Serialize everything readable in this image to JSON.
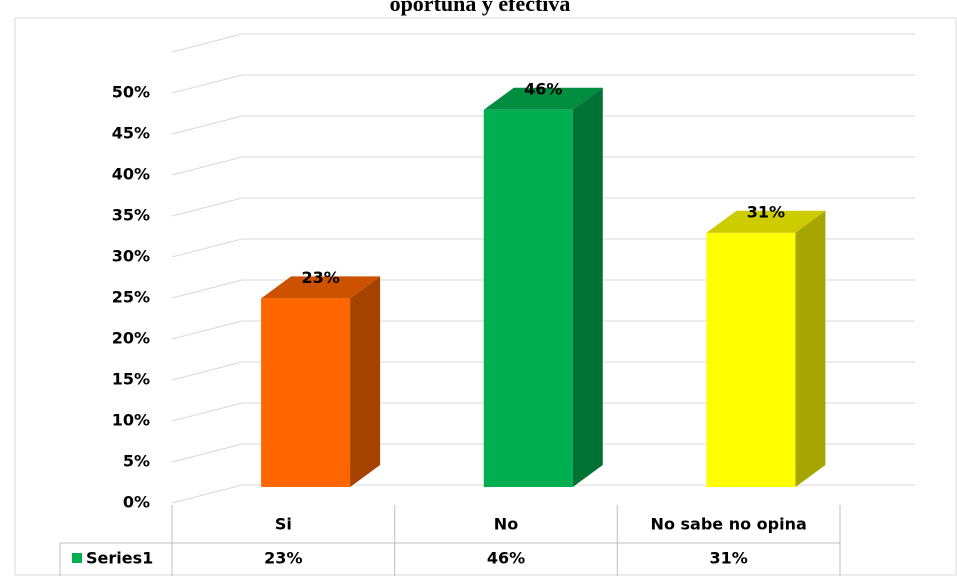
{
  "chart_data": {
    "type": "bar3d",
    "title": "oportuna y efectiva",
    "categories": [
      "Si",
      "No",
      "No sabe no opina"
    ],
    "series": [
      {
        "name": "Series1",
        "color": "#00b050",
        "values": [
          23,
          46,
          31
        ],
        "value_labels": [
          "23%",
          "46%",
          "31%"
        ]
      }
    ],
    "colors": [
      "#ff6600",
      "#00b050",
      "#ffff00"
    ],
    "ylim": [
      0,
      55
    ],
    "yticks": [
      {
        "value": 0,
        "label": "0%"
      },
      {
        "value": 5,
        "label": "5%"
      },
      {
        "value": 10,
        "label": "10%"
      },
      {
        "value": 15,
        "label": "15%"
      },
      {
        "value": 20,
        "label": "20%"
      },
      {
        "value": 25,
        "label": "25%"
      },
      {
        "value": 30,
        "label": "30%"
      },
      {
        "value": 35,
        "label": "35%"
      },
      {
        "value": 40,
        "label": "40%"
      },
      {
        "value": 45,
        "label": "45%"
      },
      {
        "value": 50,
        "label": "50%"
      }
    ],
    "grid": true,
    "data_table": true
  }
}
